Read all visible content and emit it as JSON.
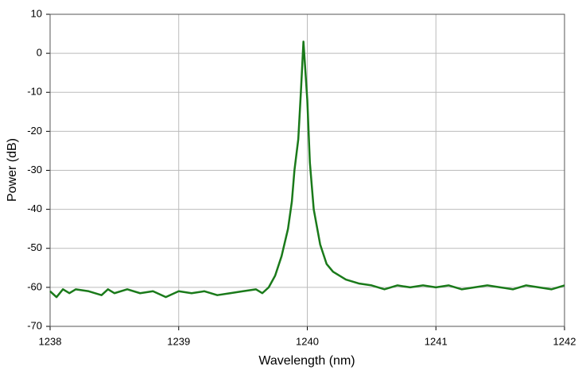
{
  "chart_data": {
    "type": "line",
    "x_label": "Wavelength (nm)",
    "y_label": "Power (dB)",
    "x": [
      1238.0,
      1238.05,
      1238.1,
      1238.15,
      1238.2,
      1238.3,
      1238.4,
      1238.45,
      1238.5,
      1238.6,
      1238.7,
      1238.8,
      1238.9,
      1239.0,
      1239.1,
      1239.2,
      1239.3,
      1239.4,
      1239.5,
      1239.6,
      1239.65,
      1239.7,
      1239.75,
      1239.8,
      1239.85,
      1239.88,
      1239.9,
      1239.93,
      1239.95,
      1239.97,
      1239.98,
      1240.0,
      1240.02,
      1240.05,
      1240.1,
      1240.15,
      1240.2,
      1240.3,
      1240.4,
      1240.5,
      1240.6,
      1240.7,
      1240.8,
      1240.9,
      1241.0,
      1241.1,
      1241.2,
      1241.3,
      1241.4,
      1241.5,
      1241.6,
      1241.7,
      1241.8,
      1241.9,
      1242.0
    ],
    "series": [
      {
        "name": "Power",
        "color": "#1a7a1a",
        "values": [
          -61,
          -62.5,
          -60.5,
          -61.5,
          -60.5,
          -61,
          -62,
          -60.5,
          -61.5,
          -60.5,
          -61.5,
          -61,
          -62.5,
          -61,
          -61.5,
          -61,
          -62,
          -61.5,
          -61,
          -60.5,
          -61.5,
          -60,
          -57,
          -52,
          -45,
          -38,
          -30,
          -22,
          -10,
          3,
          -2,
          -12,
          -28,
          -40,
          -49,
          -54,
          -56,
          -58,
          -59,
          -59.5,
          -60.5,
          -59.5,
          -60,
          -59.5,
          -60,
          -59.5,
          -60.5,
          -60,
          -59.5,
          -60,
          -60.5,
          -59.5,
          -60,
          -60.5,
          -59.5
        ]
      }
    ],
    "xlim": [
      1238,
      1242
    ],
    "xticks": [
      1238,
      1239,
      1240,
      1241,
      1242
    ],
    "ylim": [
      -70,
      10
    ],
    "yticks": [
      -70,
      -60,
      -50,
      -40,
      -30,
      -20,
      -10,
      0,
      10
    ],
    "grid": true
  }
}
